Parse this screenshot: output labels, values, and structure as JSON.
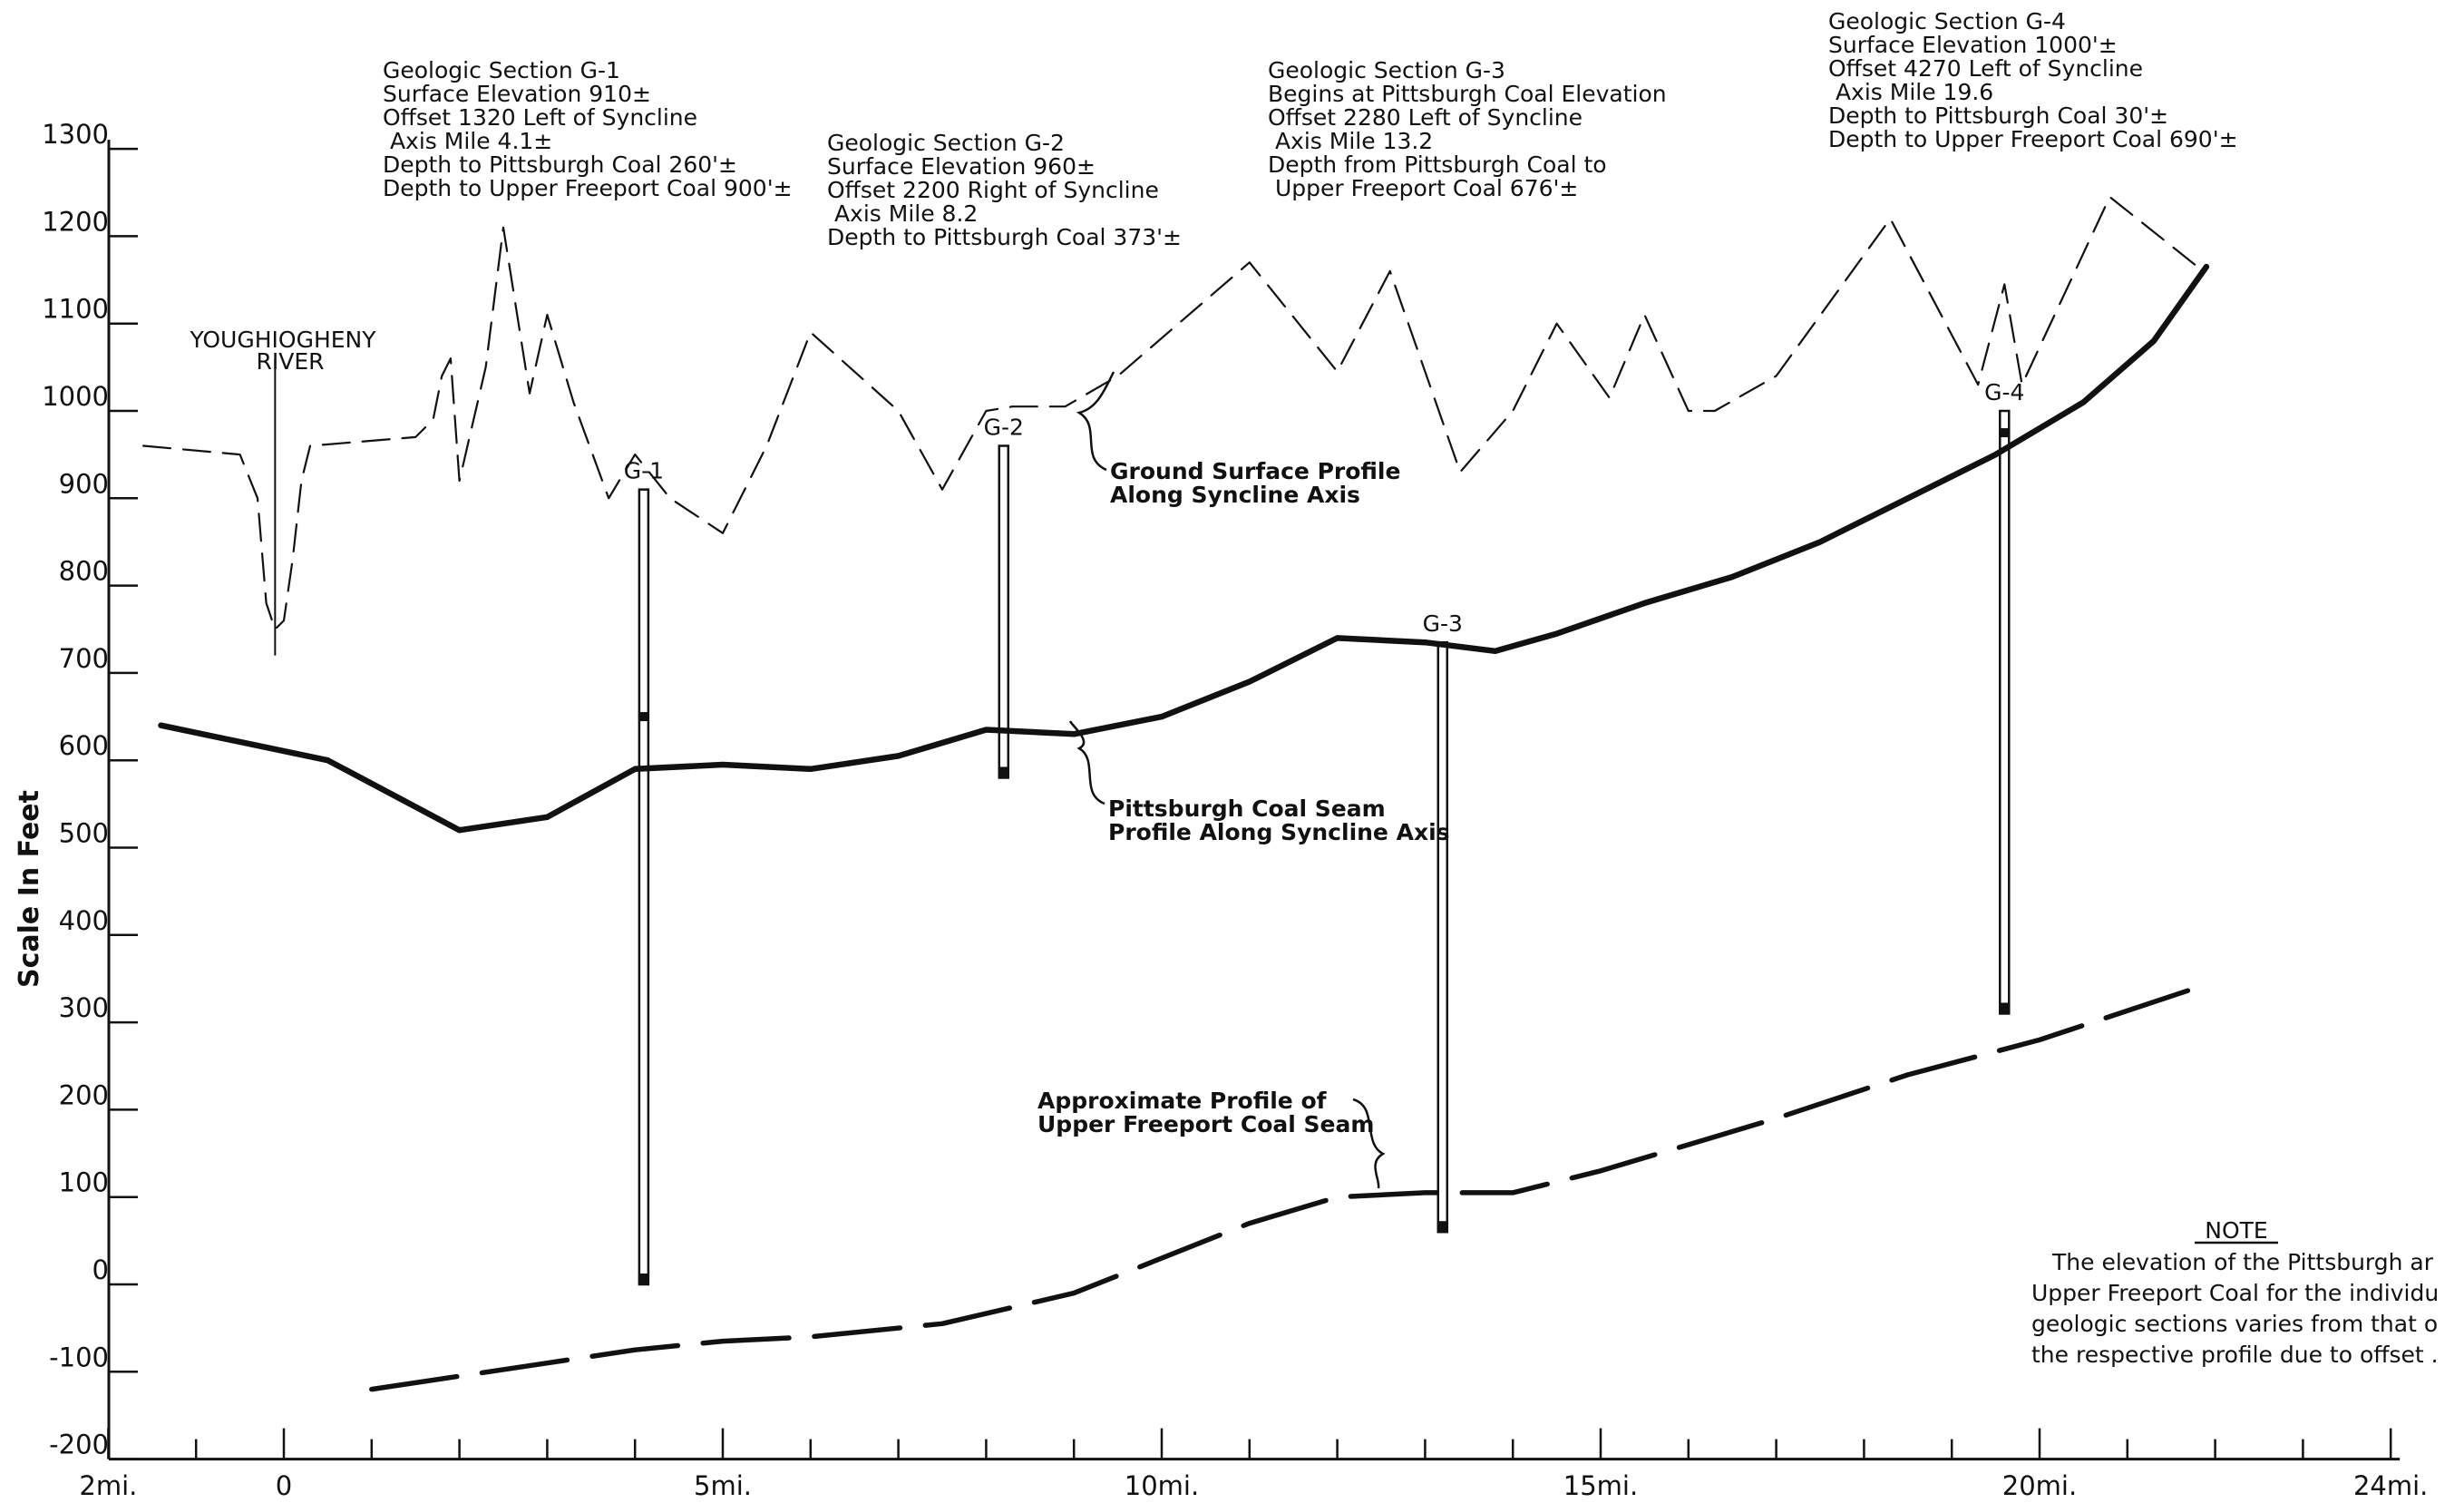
{
  "chart_data": {
    "type": "line",
    "ylabel": "Scale In Feet",
    "y_ticks": [
      1300,
      1200,
      1100,
      1000,
      900,
      800,
      700,
      600,
      500,
      400,
      300,
      200,
      100,
      0,
      -100,
      -200
    ],
    "y_tick_labels": [
      "1300",
      "1200",
      "1100",
      "1000",
      "900",
      "800",
      "700",
      "600",
      "500",
      "400",
      "300",
      "200",
      "100",
      "0",
      "-100",
      "-200"
    ],
    "ylim": [
      -200,
      1300
    ],
    "xlim": [
      -2,
      24
    ],
    "x_labels": [
      {
        "x": -2,
        "label": "2mi."
      },
      {
        "x": 0,
        "label": "0"
      },
      {
        "x": 5,
        "label": "5mi."
      },
      {
        "x": 10,
        "label": "10mi."
      },
      {
        "x": 15,
        "label": "15mi."
      },
      {
        "x": 20,
        "label": "20mi."
      },
      {
        "x": 24,
        "label": "24mi."
      }
    ],
    "series": [
      {
        "name": "Ground Surface Profile Along Syncline Axis",
        "style": "dashed",
        "points": [
          [
            -1.6,
            960
          ],
          [
            -0.5,
            950
          ],
          [
            -0.3,
            900
          ],
          [
            -0.2,
            780
          ],
          [
            -0.1,
            750
          ],
          [
            0,
            760
          ],
          [
            0.1,
            830
          ],
          [
            0.2,
            920
          ],
          [
            0.3,
            960
          ],
          [
            1.5,
            970
          ],
          [
            1.7,
            990
          ],
          [
            1.8,
            1040
          ],
          [
            1.9,
            1060
          ],
          [
            2.0,
            920
          ],
          [
            2.3,
            1050
          ],
          [
            2.5,
            1210
          ],
          [
            2.8,
            1020
          ],
          [
            3.0,
            1110
          ],
          [
            3.3,
            1010
          ],
          [
            3.7,
            900
          ],
          [
            4.0,
            950
          ],
          [
            4.4,
            900
          ],
          [
            5.0,
            860
          ],
          [
            5.5,
            960
          ],
          [
            6.0,
            1090
          ],
          [
            7.0,
            1000
          ],
          [
            7.5,
            910
          ],
          [
            8.0,
            1000
          ],
          [
            8.3,
            1005
          ],
          [
            8.9,
            1005
          ],
          [
            9.5,
            1040
          ],
          [
            11.0,
            1170
          ],
          [
            12.0,
            1045
          ],
          [
            12.6,
            1160
          ],
          [
            13.4,
            930
          ],
          [
            14.0,
            1000
          ],
          [
            14.5,
            1100
          ],
          [
            15.1,
            1015
          ],
          [
            15.5,
            1110
          ],
          [
            16.0,
            1000
          ],
          [
            16.3,
            1000
          ],
          [
            17.0,
            1040
          ],
          [
            18.3,
            1220
          ],
          [
            19.3,
            1030
          ],
          [
            19.6,
            1145
          ],
          [
            19.8,
            1030
          ],
          [
            20.8,
            1245
          ],
          [
            21.8,
            1165
          ]
        ]
      },
      {
        "name": "Pittsburgh Coal Seam Profile Along Syncline Axis",
        "style": "solid",
        "points": [
          [
            -1.4,
            640
          ],
          [
            0.5,
            600
          ],
          [
            2.0,
            520
          ],
          [
            3.0,
            535
          ],
          [
            4.0,
            590
          ],
          [
            5.0,
            595
          ],
          [
            6.0,
            590
          ],
          [
            7.0,
            605
          ],
          [
            8.0,
            635
          ],
          [
            9.0,
            630
          ],
          [
            10.0,
            650
          ],
          [
            11.0,
            690
          ],
          [
            12.0,
            740
          ],
          [
            13.0,
            735
          ],
          [
            13.8,
            725
          ],
          [
            14.5,
            745
          ],
          [
            15.5,
            780
          ],
          [
            16.5,
            810
          ],
          [
            17.5,
            850
          ],
          [
            18.5,
            900
          ],
          [
            19.5,
            950
          ],
          [
            20.5,
            1010
          ],
          [
            21.3,
            1080
          ],
          [
            21.9,
            1165
          ]
        ]
      },
      {
        "name": "Approximate Profile of Upper Freeport Coal Seam",
        "style": "long-dashed",
        "points": [
          [
            1.0,
            -120
          ],
          [
            3.0,
            -90
          ],
          [
            4.0,
            -75
          ],
          [
            5.0,
            -65
          ],
          [
            6.0,
            -60
          ],
          [
            7.5,
            -45
          ],
          [
            9.0,
            -10
          ],
          [
            10.0,
            30
          ],
          [
            11.0,
            70
          ],
          [
            12.0,
            100
          ],
          [
            13.0,
            105
          ],
          [
            14.0,
            105
          ],
          [
            15.0,
            130
          ],
          [
            17.0,
            190
          ],
          [
            18.5,
            240
          ],
          [
            20.0,
            280
          ],
          [
            21.8,
            340
          ]
        ]
      }
    ],
    "sections": [
      {
        "label": "G-1",
        "x": 4.1,
        "top": 910,
        "bottom": 0,
        "mark": 650
      },
      {
        "label": "G-2",
        "x": 8.2,
        "top": 960,
        "bottom": 580,
        "mark": 0
      },
      {
        "label": "G-3",
        "x": 13.2,
        "top": 735,
        "bottom": 60,
        "mark": 0
      },
      {
        "label": "G-4",
        "x": 19.6,
        "top": 1000,
        "bottom": 310,
        "mark": 975
      }
    ],
    "annotations": {
      "river": [
        "YOUGHIOGHENY",
        "RIVER"
      ],
      "ground": [
        "Ground Surface Profile",
        "Along Syncline Axis"
      ],
      "pittsburgh": [
        "Pittsburgh Coal Seam",
        "Profile Along Syncline Axis"
      ],
      "freeport": [
        "Approximate Profile of",
        "Upper Freeport Coal Seam"
      ],
      "g1": [
        "Geologic Section G-1",
        "Surface Elevation 910±",
        "Offset 1320 Left of Syncline",
        "   Axis Mile 4.1±",
        "Depth to Pittsburgh Coal 260'±",
        "Depth to Upper Freeport Coal 900'±"
      ],
      "g2": [
        "Geologic Section G-2",
        "Surface Elevation 960±",
        "Offset 2200 Right of Syncline",
        "    Axis Mile 8.2",
        "Depth to Pittsburgh Coal 373'±"
      ],
      "g3": [
        "Geologic Section G-3",
        "Begins at Pittsburgh Coal Elevation",
        "Offset 2280 Left of Syncline",
        "    Axis Mile 13.2",
        "Depth from Pittsburgh Coal to",
        "     Upper Freeport Coal 676'±"
      ],
      "g4": [
        "Geologic Section G-4",
        "Surface Elevation 1000'±",
        "Offset 4270 Left of Syncline",
        "    Axis Mile 19.6",
        "Depth to Pittsburgh Coal 30'±",
        "Depth to Upper Freeport Coal 690'±"
      ],
      "note_title": "NOTE",
      "note": [
        "The elevation of the Pittsburgh ar",
        "Upper Freeport Coal for the individu",
        "geologic sections varies from that o",
        "the respective profile due to offset ."
      ]
    }
  }
}
